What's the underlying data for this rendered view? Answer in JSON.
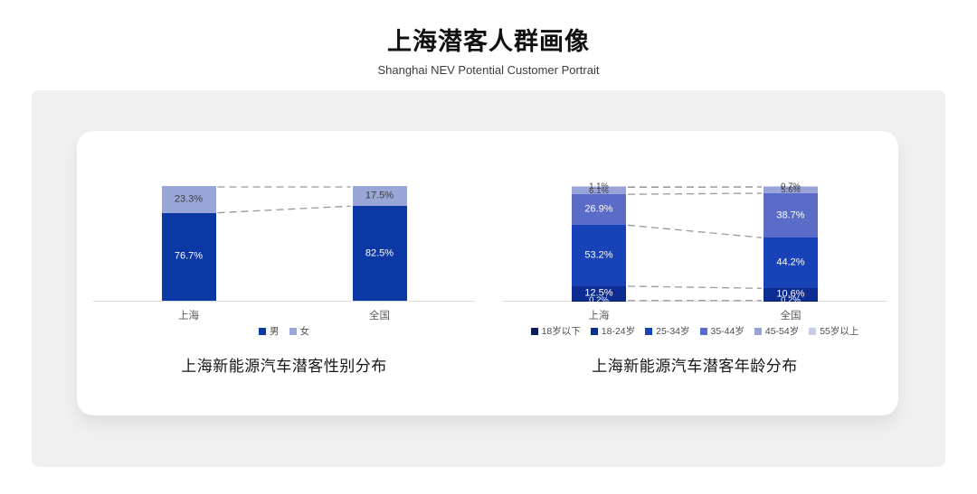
{
  "header": {
    "title": "上海潜客人群画像",
    "subtitle": "Shanghai NEV Potential Customer Portrait"
  },
  "colors": {
    "page_bg": "#ffffff",
    "panel_bg": "#f0f0f1",
    "card_bg": "#ffffff",
    "axis_line": "#dadada",
    "connector_line": "#999999",
    "tick_text": "#595959",
    "legend_text": "#4d4d4d",
    "label_on_dark": "#ffffff",
    "label_on_light": "#3d3d3d"
  },
  "chart_data": [
    {
      "type": "bar",
      "variant": "stacked-100-column",
      "caption": "上海新能源汽车潜客性别分布",
      "categories": [
        "上海",
        "全国"
      ],
      "series": [
        {
          "name": "男",
          "color": "#0B38A5",
          "values": [
            76.7,
            82.5
          ]
        },
        {
          "name": "女",
          "color": "#9AA5D8",
          "values": [
            23.3,
            17.5
          ]
        }
      ],
      "ylim": [
        0,
        100
      ],
      "grid": false,
      "legend_position": "bottom",
      "connectors": "dashed"
    },
    {
      "type": "bar",
      "variant": "stacked-100-column",
      "caption": "上海新能源汽车潜客年龄分布",
      "categories": [
        "上海",
        "全国"
      ],
      "series": [
        {
          "name": "18岁以下",
          "color": "#0A1C60",
          "values": [
            0.2,
            0.2
          ]
        },
        {
          "name": "18-24岁",
          "color": "#0D2D92",
          "values": [
            12.5,
            10.6
          ]
        },
        {
          "name": "25-34岁",
          "color": "#1843B8",
          "values": [
            53.2,
            44.2
          ]
        },
        {
          "name": "35-44岁",
          "color": "#5A6CC8",
          "values": [
            26.9,
            38.7
          ]
        },
        {
          "name": "45-54岁",
          "color": "#98A3D8",
          "values": [
            6.1,
            5.6
          ]
        },
        {
          "name": "55岁以上",
          "color": "#C9CEE9",
          "values": [
            1.1,
            0.7
          ]
        }
      ],
      "ylim": [
        0,
        100
      ],
      "grid": false,
      "legend_position": "bottom",
      "connectors": "dashed"
    }
  ]
}
